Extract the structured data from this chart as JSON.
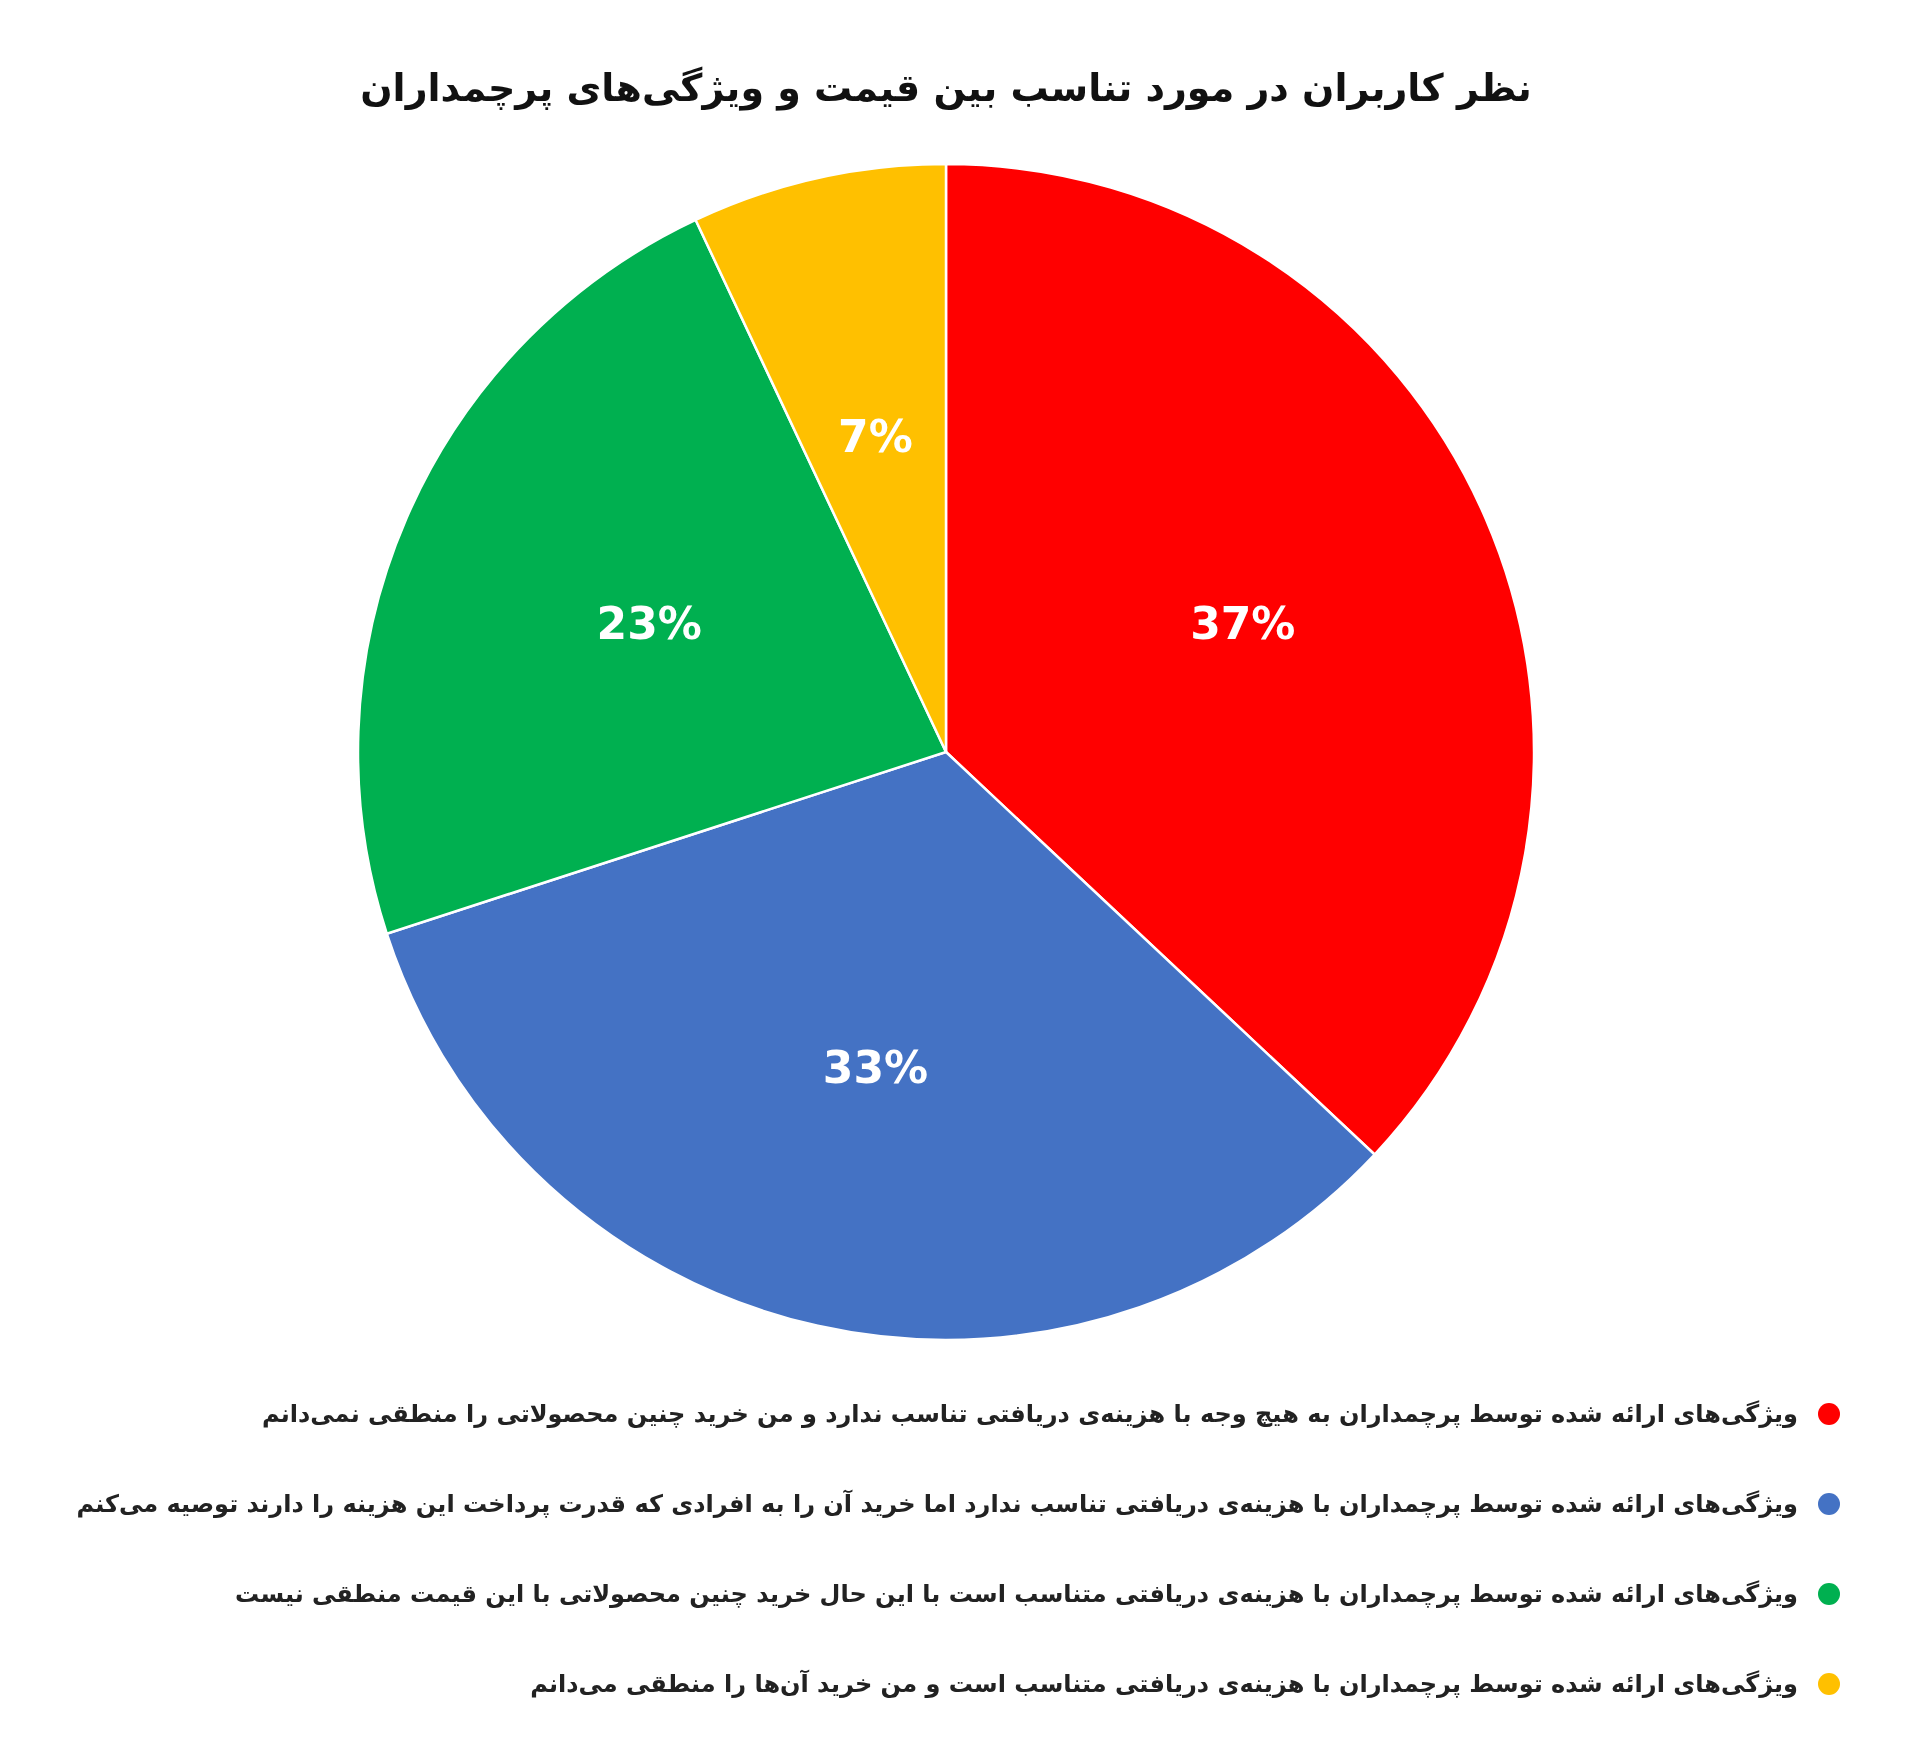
{
  "chart_data": {
    "type": "pie",
    "title": "نظر کاربران در مورد تناسب بین قیمت و ویژگی‌های پرچمداران",
    "categories": [
      "ویژگی‌های ارائه شده توسط پرچمداران به هیچ وجه با هزینه‌ی دریافتی تناسب ندارد و من خرید چنین محصولاتی را منطقی نمی‌دانم",
      "ویژگی‌های ارائه شده توسط پرچمداران با هزینه‌ی دریافتی تناسب ندارد اما خرید آن را به افرادی که قدرت پرداخت این هزینه را دارند توصیه می‌کنم",
      "ویژگی‌های ارائه شده توسط پرچمداران با هزینه‌ی دریافتی متناسب است با این حال خرید چنین محصولاتی با این قیمت منطقی نیست",
      "ویژگی‌های ارائه شده توسط پرچمداران با هزینه‌ی دریافتی متناسب است و من خرید آن‌ها را منطقی می‌دانم"
    ],
    "values": [
      37,
      33,
      23,
      7
    ],
    "colors": [
      "#ff0000",
      "#4472c4",
      "#00b050",
      "#ffc000"
    ],
    "value_labels": [
      "37%",
      "33%",
      "23%",
      "7%"
    ],
    "legend": "bottom"
  }
}
